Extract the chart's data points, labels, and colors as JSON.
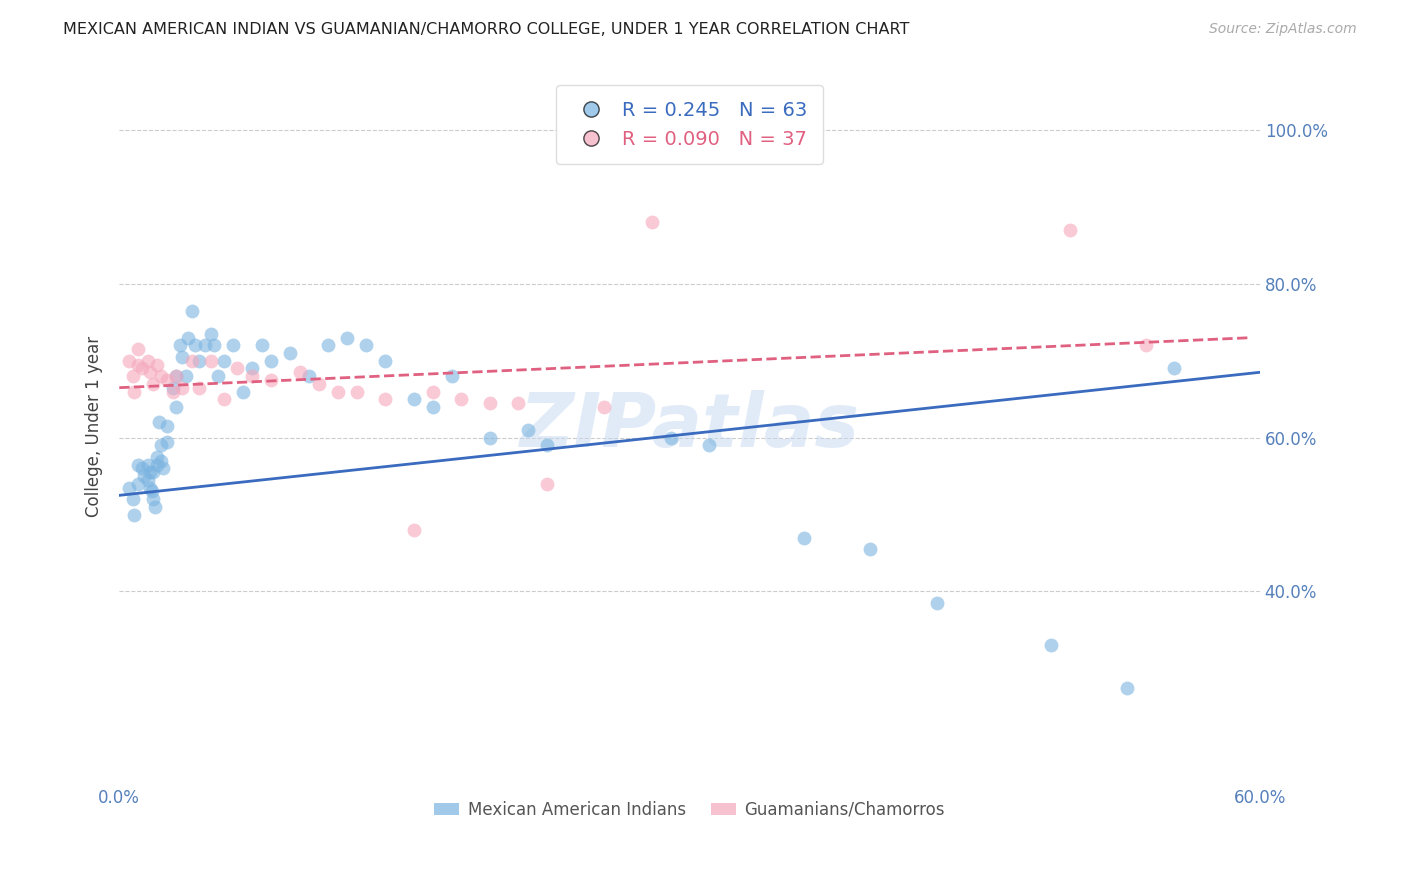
{
  "title": "MEXICAN AMERICAN INDIAN VS GUAMANIAN/CHAMORRO COLLEGE, UNDER 1 YEAR CORRELATION CHART",
  "source": "Source: ZipAtlas.com",
  "ylabel": "College, Under 1 year",
  "xlim": [
    0.0,
    0.6
  ],
  "ylim": [
    0.15,
    1.08
  ],
  "x_tick_positions": [
    0.0,
    0.1,
    0.2,
    0.3,
    0.4,
    0.5,
    0.6
  ],
  "x_tick_labels": [
    "0.0%",
    "",
    "",
    "",
    "",
    "",
    "60.0%"
  ],
  "y_ticks_right": [
    0.4,
    0.6,
    0.8,
    1.0
  ],
  "y_tick_right_labels": [
    "40.0%",
    "60.0%",
    "80.0%",
    "100.0%"
  ],
  "legend_r_blue": "R = 0.245",
  "legend_n_blue": "N = 63",
  "legend_r_pink": "R = 0.090",
  "legend_n_pink": "N = 37",
  "watermark": "ZIPatlas",
  "blue_color": "#7ab3e0",
  "pink_color": "#f5a8bc",
  "line_blue": "#3a6bbf",
  "line_pink": "#e06080",
  "axis_label_color": "#5580bb",
  "grid_color": "#cccccc",
  "blue_scatter_x": [
    0.005,
    0.007,
    0.008,
    0.01,
    0.01,
    0.012,
    0.013,
    0.015,
    0.015,
    0.016,
    0.016,
    0.017,
    0.018,
    0.018,
    0.019,
    0.02,
    0.02,
    0.021,
    0.022,
    0.022,
    0.023,
    0.025,
    0.025,
    0.028,
    0.03,
    0.03,
    0.032,
    0.033,
    0.035,
    0.036,
    0.038,
    0.04,
    0.042,
    0.045,
    0.048,
    0.05,
    0.052,
    0.055,
    0.06,
    0.065,
    0.07,
    0.075,
    0.08,
    0.09,
    0.1,
    0.11,
    0.12,
    0.13,
    0.14,
    0.155,
    0.165,
    0.175,
    0.195,
    0.215,
    0.225,
    0.29,
    0.31,
    0.36,
    0.395,
    0.43,
    0.49,
    0.53,
    0.555
  ],
  "blue_scatter_y": [
    0.535,
    0.52,
    0.5,
    0.565,
    0.54,
    0.56,
    0.55,
    0.565,
    0.545,
    0.555,
    0.535,
    0.53,
    0.555,
    0.52,
    0.51,
    0.565,
    0.575,
    0.62,
    0.59,
    0.57,
    0.56,
    0.615,
    0.595,
    0.665,
    0.64,
    0.68,
    0.72,
    0.705,
    0.68,
    0.73,
    0.765,
    0.72,
    0.7,
    0.72,
    0.735,
    0.72,
    0.68,
    0.7,
    0.72,
    0.66,
    0.69,
    0.72,
    0.7,
    0.71,
    0.68,
    0.72,
    0.73,
    0.72,
    0.7,
    0.65,
    0.64,
    0.68,
    0.6,
    0.61,
    0.59,
    0.6,
    0.59,
    0.47,
    0.455,
    0.385,
    0.33,
    0.275,
    0.69
  ],
  "pink_scatter_x": [
    0.005,
    0.007,
    0.008,
    0.01,
    0.01,
    0.012,
    0.015,
    0.016,
    0.018,
    0.02,
    0.022,
    0.025,
    0.028,
    0.03,
    0.033,
    0.038,
    0.042,
    0.048,
    0.055,
    0.062,
    0.07,
    0.08,
    0.095,
    0.105,
    0.115,
    0.125,
    0.14,
    0.155,
    0.165,
    0.18,
    0.195,
    0.21,
    0.225,
    0.255,
    0.28,
    0.5,
    0.54
  ],
  "pink_scatter_y": [
    0.7,
    0.68,
    0.66,
    0.715,
    0.695,
    0.69,
    0.7,
    0.685,
    0.67,
    0.695,
    0.68,
    0.675,
    0.66,
    0.68,
    0.665,
    0.7,
    0.665,
    0.7,
    0.65,
    0.69,
    0.68,
    0.675,
    0.685,
    0.67,
    0.66,
    0.66,
    0.65,
    0.48,
    0.66,
    0.65,
    0.645,
    0.645,
    0.54,
    0.64,
    0.88,
    0.87,
    0.72
  ],
  "blue_line_x": [
    0.0,
    0.6
  ],
  "blue_line_y": [
    0.525,
    0.685
  ],
  "pink_line_x": [
    0.0,
    0.595
  ],
  "pink_line_y": [
    0.665,
    0.73
  ],
  "bottom_legend_labels": [
    "Mexican American Indians",
    "Guamanians/Chamorros"
  ]
}
